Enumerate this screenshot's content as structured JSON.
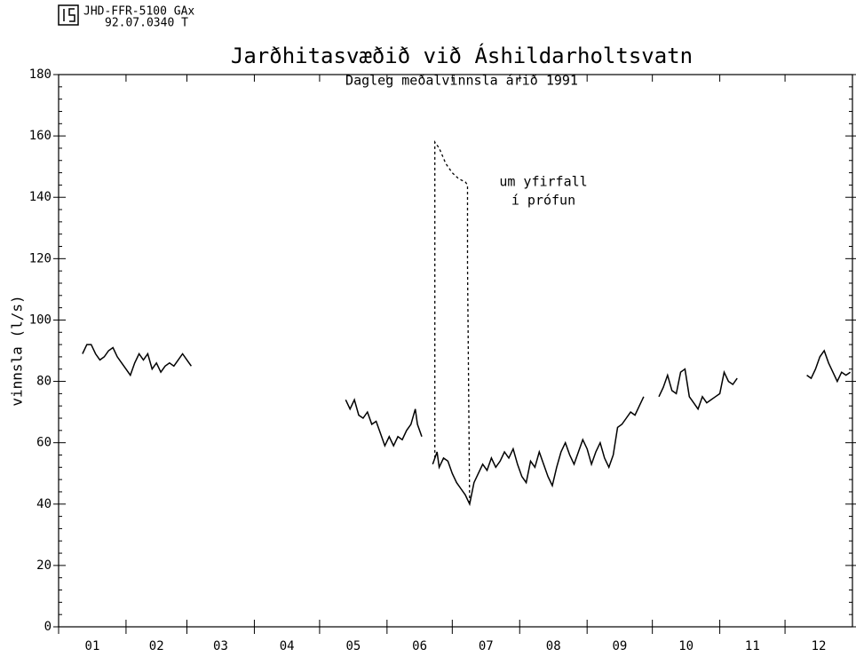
{
  "header": {
    "code": "JHD-FFR-5100 GAx",
    "number": "92.07.0340 T"
  },
  "chart_data": {
    "type": "line",
    "title": "Jarðhitasvæðið við Áshildarholtsvatn",
    "subtitle": "Dagleg meðalvinnsla árið 1991",
    "ylabel": "vinnsla (l/s)",
    "annotations": [
      "um yfirfall",
      "í prófun"
    ],
    "categories": [
      "01",
      "02",
      "03",
      "04",
      "05",
      "06",
      "07",
      "08",
      "09",
      "10",
      "11",
      "12"
    ],
    "month_starts": [
      0,
      31,
      59,
      90,
      120,
      151,
      181,
      212,
      243,
      273,
      304,
      334
    ],
    "xlim": [
      0,
      365
    ],
    "ylim": [
      0,
      180
    ],
    "yticks": [
      0,
      20,
      40,
      60,
      80,
      100,
      120,
      140,
      160,
      180
    ],
    "series": [
      {
        "style": "solid",
        "color": "#000000",
        "x": [
          11,
          13,
          15,
          17,
          19,
          21,
          23,
          25,
          27,
          29,
          31,
          33,
          35,
          37,
          39,
          41,
          43,
          45,
          47,
          49,
          51,
          53,
          55,
          57,
          59,
          61,
          96,
          132,
          134,
          136,
          138,
          140,
          142,
          144,
          146,
          148,
          150,
          152,
          154,
          156,
          158,
          160,
          162,
          164,
          165,
          167,
          170,
          172,
          174,
          175,
          177,
          179,
          181,
          183,
          185,
          187,
          189,
          191,
          193,
          195,
          197,
          199,
          201,
          203,
          205,
          207,
          209,
          211,
          213,
          215,
          217,
          219,
          221,
          223,
          225,
          227,
          229,
          231,
          233,
          235,
          237,
          239,
          241,
          243,
          245,
          247,
          249,
          251,
          253,
          255,
          257,
          259,
          261,
          263,
          265,
          267,
          269,
          272,
          276,
          278,
          280,
          282,
          284,
          286,
          288,
          290,
          292,
          294,
          296,
          298,
          300,
          302,
          304,
          306,
          308,
          310,
          312,
          328,
          344,
          346,
          348,
          350,
          352,
          354,
          356,
          358,
          360,
          362,
          364
        ],
        "values": [
          89,
          92,
          92,
          89,
          87,
          88,
          90,
          91,
          88,
          86,
          84,
          82,
          86,
          89,
          87,
          89,
          84,
          86,
          83,
          85,
          86,
          85,
          87,
          89,
          87,
          85,
          null,
          74,
          71,
          74,
          69,
          68,
          70,
          66,
          67,
          63,
          59,
          62,
          59,
          62,
          61,
          64,
          66,
          71,
          66,
          62,
          null,
          53,
          57,
          52,
          55,
          54,
          50,
          47,
          45,
          43,
          40,
          47,
          50,
          53,
          51,
          55,
          52,
          54,
          57,
          55,
          58,
          53,
          49,
          47,
          54,
          52,
          57,
          53,
          49,
          46,
          52,
          57,
          60,
          56,
          53,
          57,
          61,
          58,
          53,
          57,
          60,
          55,
          52,
          56,
          65,
          66,
          68,
          70,
          69,
          72,
          75,
          null,
          75,
          78,
          82,
          77,
          76,
          83,
          84,
          75,
          73,
          71,
          75,
          73,
          74,
          75,
          76,
          83,
          80,
          79,
          81,
          null,
          82,
          81,
          84,
          88,
          90,
          86,
          83,
          80,
          83,
          82,
          83
        ]
      },
      {
        "style": "dashed",
        "color": "#000000",
        "x": [
          173,
          173,
          175,
          178,
          181,
          184,
          187,
          188,
          188,
          189
        ],
        "values": [
          55,
          158,
          156,
          151,
          148,
          146,
          145,
          144,
          118,
          40
        ]
      }
    ]
  }
}
